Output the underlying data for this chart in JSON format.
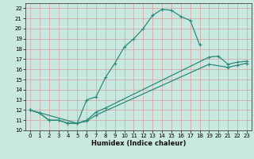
{
  "xlabel": "Humidex (Indice chaleur)",
  "bg_color": "#c8e8e0",
  "line_color": "#2e8b7a",
  "grid_color_h": "#d4a0a0",
  "grid_color_v": "#d4a0a0",
  "xlim": [
    -0.5,
    23.5
  ],
  "ylim": [
    10,
    22.5
  ],
  "xticks": [
    0,
    1,
    2,
    3,
    4,
    5,
    6,
    7,
    8,
    9,
    10,
    11,
    12,
    13,
    14,
    15,
    16,
    17,
    18,
    19,
    20,
    21,
    22,
    23
  ],
  "yticks": [
    10,
    11,
    12,
    13,
    14,
    15,
    16,
    17,
    18,
    19,
    20,
    21,
    22
  ],
  "line1_x": [
    0,
    1,
    2,
    3,
    4,
    5,
    6,
    7,
    8,
    9,
    10,
    11,
    12,
    13,
    14,
    15,
    16,
    17,
    18
  ],
  "line1_y": [
    12.0,
    11.7,
    11.0,
    11.0,
    10.7,
    10.7,
    13.0,
    13.3,
    15.2,
    16.6,
    18.2,
    19.0,
    20.0,
    21.3,
    21.9,
    21.8,
    21.2,
    20.8,
    18.4
  ],
  "line2_x": [
    0,
    1,
    2,
    3,
    4,
    5,
    6,
    7,
    8,
    19,
    20,
    21,
    22,
    23
  ],
  "line2_y": [
    12.0,
    11.7,
    11.0,
    11.0,
    10.7,
    10.7,
    11.0,
    11.8,
    12.2,
    17.2,
    17.3,
    16.5,
    16.7,
    16.8
  ],
  "line3_x": [
    0,
    5,
    6,
    7,
    19,
    21,
    22,
    23
  ],
  "line3_y": [
    12.0,
    10.7,
    10.9,
    11.5,
    16.5,
    16.2,
    16.4,
    16.6
  ]
}
